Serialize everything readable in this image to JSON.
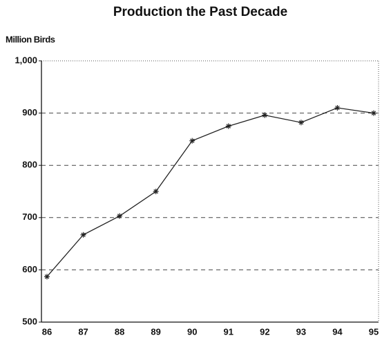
{
  "chart_data": {
    "type": "line",
    "title": "Production the Past Decade",
    "y_label": "Million Birds",
    "categories": [
      "86",
      "87",
      "88",
      "89",
      "90",
      "91",
      "92",
      "93",
      "94",
      "95"
    ],
    "values": [
      587,
      667,
      703,
      750,
      847,
      875,
      896,
      882,
      910,
      900
    ],
    "color": "#222222",
    "ylim": [
      500,
      1000
    ],
    "yticks": [
      500,
      600,
      700,
      800,
      900,
      {
        "value": 1000,
        "label": "1,000"
      }
    ],
    "grid": true
  }
}
